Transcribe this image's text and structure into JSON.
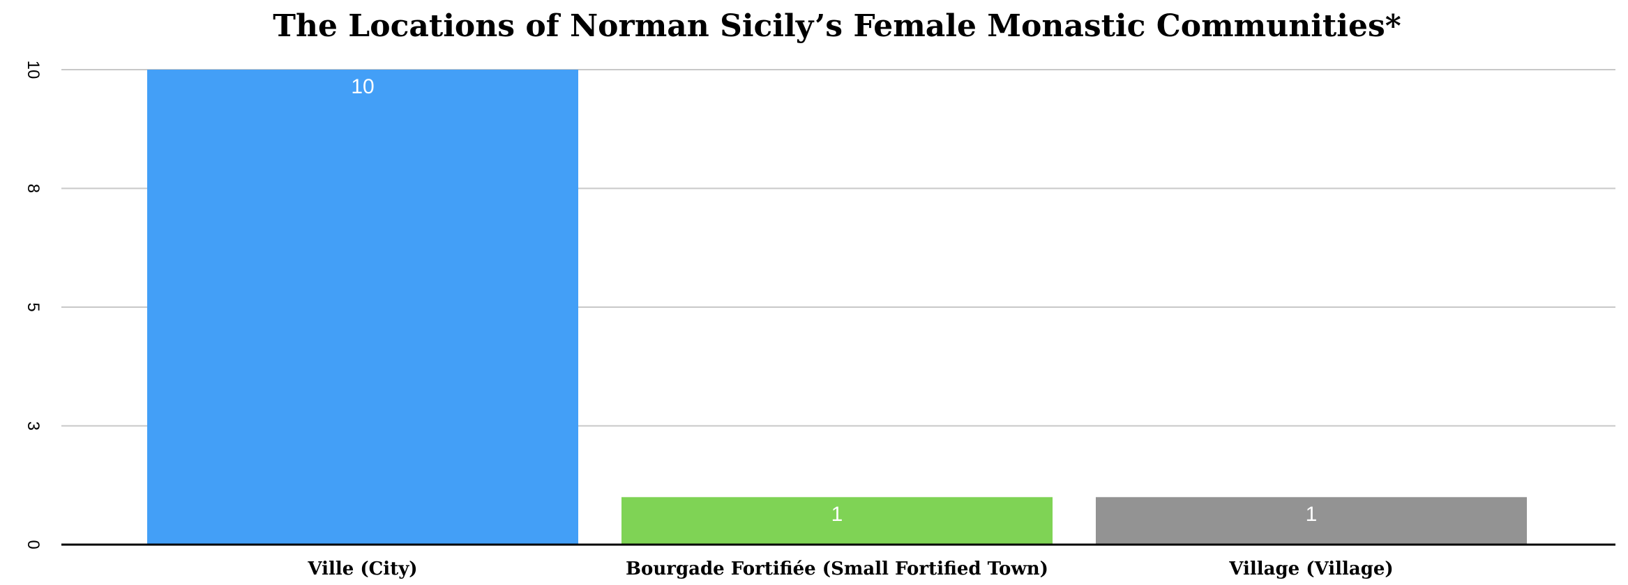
{
  "chart_data": {
    "type": "bar",
    "title": "The Locations of Norman Sicily’s Female Monastic Communities*",
    "xlabel": "",
    "ylabel": "",
    "categories": [
      "Ville (City)",
      "Bourgade Fortifiée (Small Fortified Town)",
      "Village (Village)"
    ],
    "values": [
      10,
      1,
      1
    ],
    "data_labels": [
      "10",
      "1",
      "1"
    ],
    "colors": [
      "#439FF7",
      "#7FD355",
      "#939393"
    ],
    "y_ticks": [
      {
        "value": 0,
        "label": "0"
      },
      {
        "value": 2.5,
        "label": "3"
      },
      {
        "value": 5,
        "label": "5"
      },
      {
        "value": 7.5,
        "label": "8"
      },
      {
        "value": 10,
        "label": "10"
      }
    ],
    "ylim": [
      0,
      10
    ],
    "y_tick_labels_rotated": true,
    "grid": true,
    "legend": "none"
  }
}
